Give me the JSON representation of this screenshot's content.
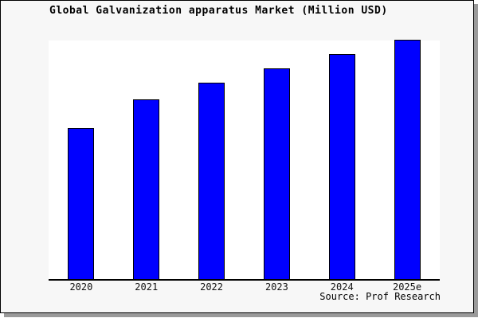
{
  "chart_data": {
    "type": "bar",
    "title": "Global Galvanization apparatus Market (Million USD)",
    "categories": [
      "2020",
      "2021",
      "2022",
      "2023",
      "2024",
      "2025e"
    ],
    "values": [
      63,
      75,
      82,
      88,
      94,
      100
    ],
    "values_note": "relative bar heights estimated from pixels; no y-axis tick labels are shown in the figure",
    "xlabel": "",
    "ylabel": "",
    "ylim": [
      0,
      100
    ],
    "grid": false,
    "legend": false,
    "bar_color": "#0000ff",
    "bar_edge_color": "#000000",
    "source_note": "Source: Prof Research"
  },
  "colors": {
    "figure_background": "#f7f7f7",
    "plot_background": "#ffffff",
    "axis_line": "#000000",
    "frame_border": "#000000",
    "frame_shadow": "#9a9a9a",
    "title_text": "#000000",
    "tick_text": "#111111"
  }
}
